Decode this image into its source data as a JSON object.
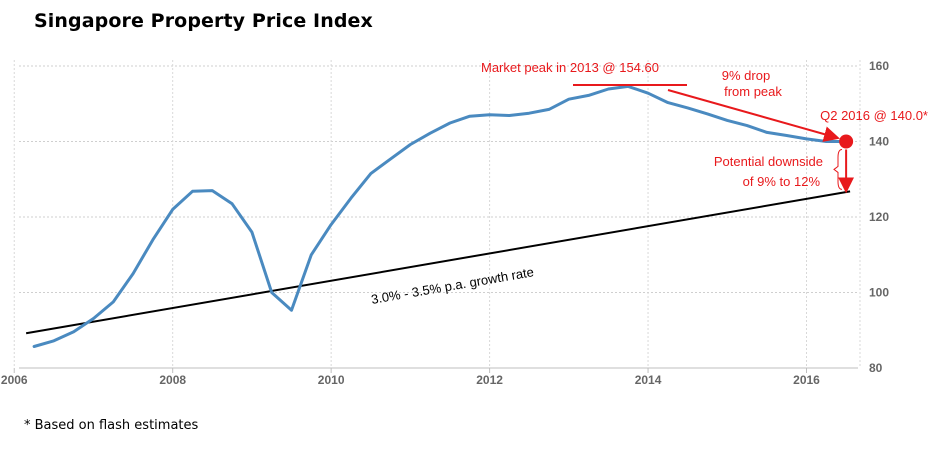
{
  "chart_data": {
    "type": "line",
    "title": "Singapore Property Price Index",
    "footnote": "* Based on flash estimates",
    "x_ticks": [
      "2006",
      "2008",
      "2010",
      "2012",
      "2014",
      "2016"
    ],
    "y_ticks": [
      "80",
      "100",
      "120",
      "140",
      "160"
    ],
    "xlim": [
      2006,
      2016.9
    ],
    "ylim": [
      80,
      160
    ],
    "grid": true,
    "colors": {
      "series": "#4a8ac0",
      "trend": "#000000",
      "annotation": "#e8191c"
    },
    "series": [
      {
        "x": [
          2006.25,
          2006.5,
          2006.75,
          2007.0,
          2007.25,
          2007.5,
          2007.75,
          2008.0,
          2008.25,
          2008.5,
          2008.75,
          2009.0,
          2009.25,
          2009.5,
          2009.75,
          2010.0,
          2010.25,
          2010.5,
          2010.75,
          2011.0,
          2011.25,
          2011.5,
          2011.75,
          2012.0,
          2012.25,
          2012.5,
          2012.75,
          2013.0,
          2013.25,
          2013.5,
          2013.75,
          2014.0,
          2014.25,
          2014.5,
          2014.75,
          2015.0,
          2015.25,
          2015.5,
          2015.75,
          2016.0,
          2016.25,
          2016.5
        ],
        "y": [
          85.7,
          87.2,
          89.6,
          93.1,
          97.5,
          105.0,
          114.0,
          122.0,
          126.8,
          127.0,
          123.5,
          116.0,
          100.0,
          95.3,
          110.0,
          118.0,
          125.0,
          131.5,
          135.4,
          139.2,
          142.2,
          144.9,
          146.7,
          147.1,
          146.9,
          147.5,
          148.5,
          151.2,
          152.2,
          153.9,
          154.6,
          152.8,
          150.3,
          148.9,
          147.3,
          145.6,
          144.2,
          142.4,
          141.6,
          140.7,
          140.0,
          140.0
        ]
      }
    ],
    "trend_line": {
      "label": "3.0% - 3.5% p.a.  growth rate",
      "x": [
        2006.15,
        2016.55
      ],
      "y": [
        89.2,
        126.8
      ]
    },
    "annotations": {
      "peak_label": "Market peak in 2013 @ 154.60",
      "drop_label_1": "9% drop",
      "drop_label_2": "from peak",
      "current_label": "Q2 2016 @ 140.0*",
      "downside_label_1": "Potential downside",
      "downside_label_2": "of  9% to 12%",
      "current_point": {
        "x": 2016.5,
        "y": 140.0
      },
      "downside_range": [
        140.0,
        126.8
      ]
    }
  }
}
